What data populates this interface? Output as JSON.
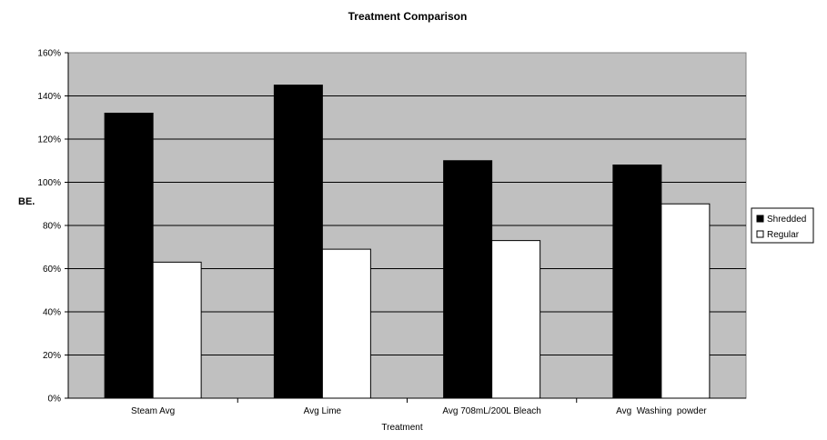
{
  "chart_data": {
    "type": "bar",
    "title": "Treatment Comparison",
    "xlabel": "Treatment",
    "ylabel": "BE.",
    "categories": [
      "Steam Avg",
      "Avg Lime",
      "Avg 708mL/200L Bleach",
      "Avg  Washing  powder"
    ],
    "series": [
      {
        "name": "Shredded",
        "values": [
          132,
          145,
          110,
          108
        ]
      },
      {
        "name": "Regular",
        "values": [
          63,
          69,
          73,
          90
        ]
      }
    ],
    "ylim": [
      0,
      160
    ],
    "yticks": [
      "0%",
      "20%",
      "40%",
      "60%",
      "80%",
      "100%",
      "120%",
      "140%",
      "160%"
    ],
    "grid": true,
    "legend": "right",
    "colors": {
      "plot_background": "#c0c0c0",
      "Shredded": "#000000",
      "Regular": "#ffffff"
    }
  }
}
